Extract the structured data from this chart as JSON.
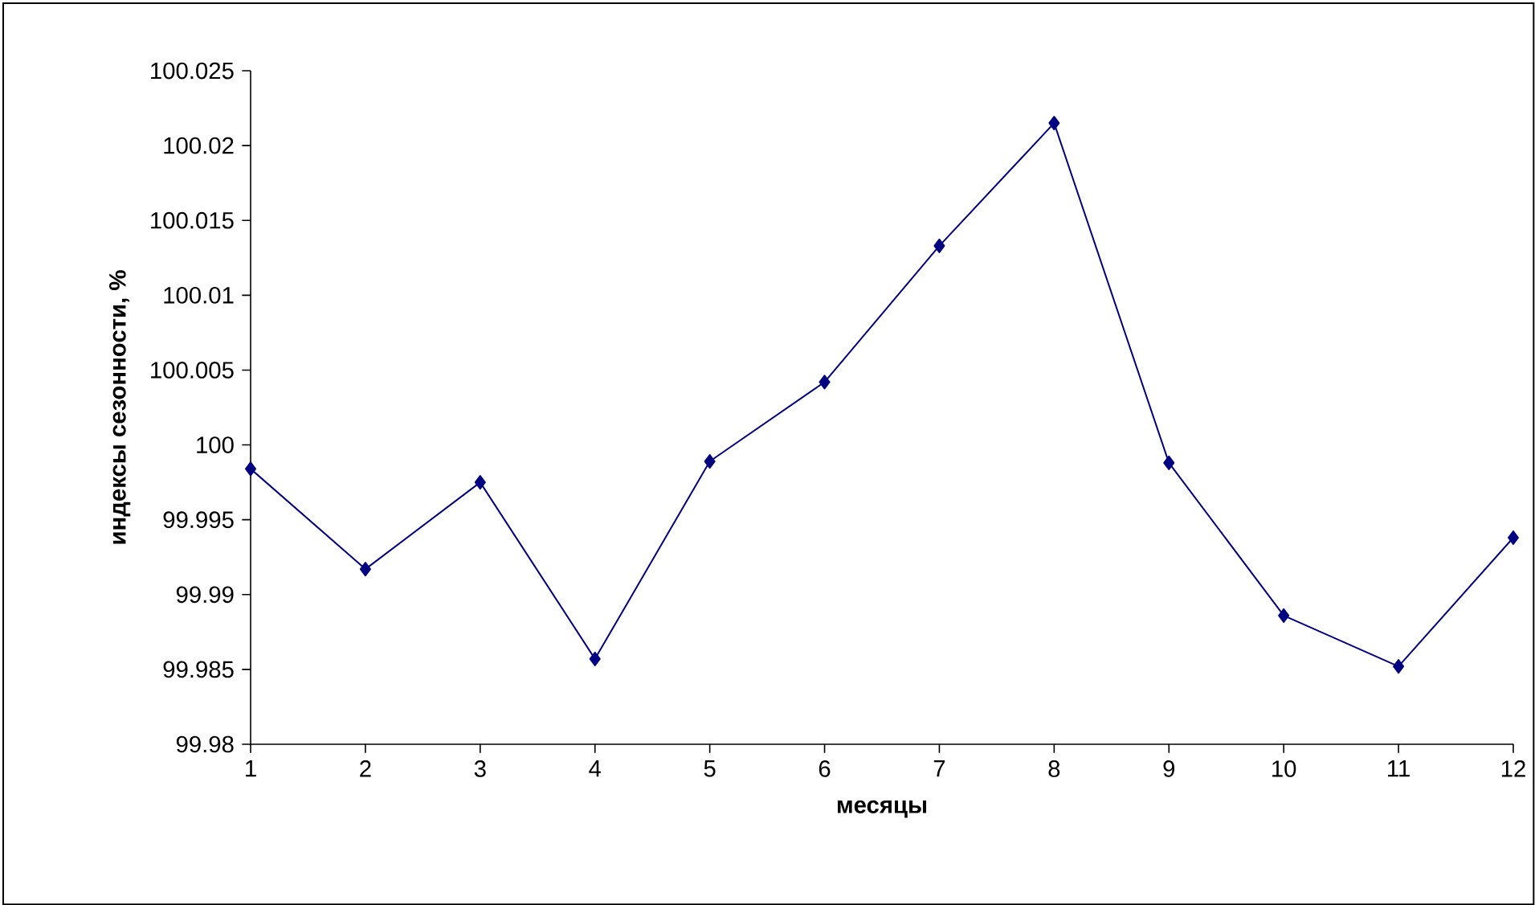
{
  "chart_data": {
    "type": "line",
    "xlabel": "месяцы",
    "ylabel": "индексы сезонности, %",
    "categories": [
      "1",
      "2",
      "3",
      "4",
      "5",
      "6",
      "7",
      "8",
      "9",
      "10",
      "11",
      "12"
    ],
    "series": [
      {
        "color": "#000080",
        "values": [
          99.9984,
          99.9917,
          99.9975,
          99.9857,
          99.9989,
          100.0042,
          100.0133,
          100.0215,
          99.9988,
          99.9886,
          99.9852,
          99.9938
        ]
      }
    ],
    "ylim": [
      99.98,
      100.025
    ],
    "yticks": [
      99.98,
      99.985,
      99.99,
      99.995,
      100,
      100.005,
      100.01,
      100.015,
      100.02,
      100.025
    ],
    "grid": false,
    "marker": "diamond",
    "line_style": "solid"
  }
}
